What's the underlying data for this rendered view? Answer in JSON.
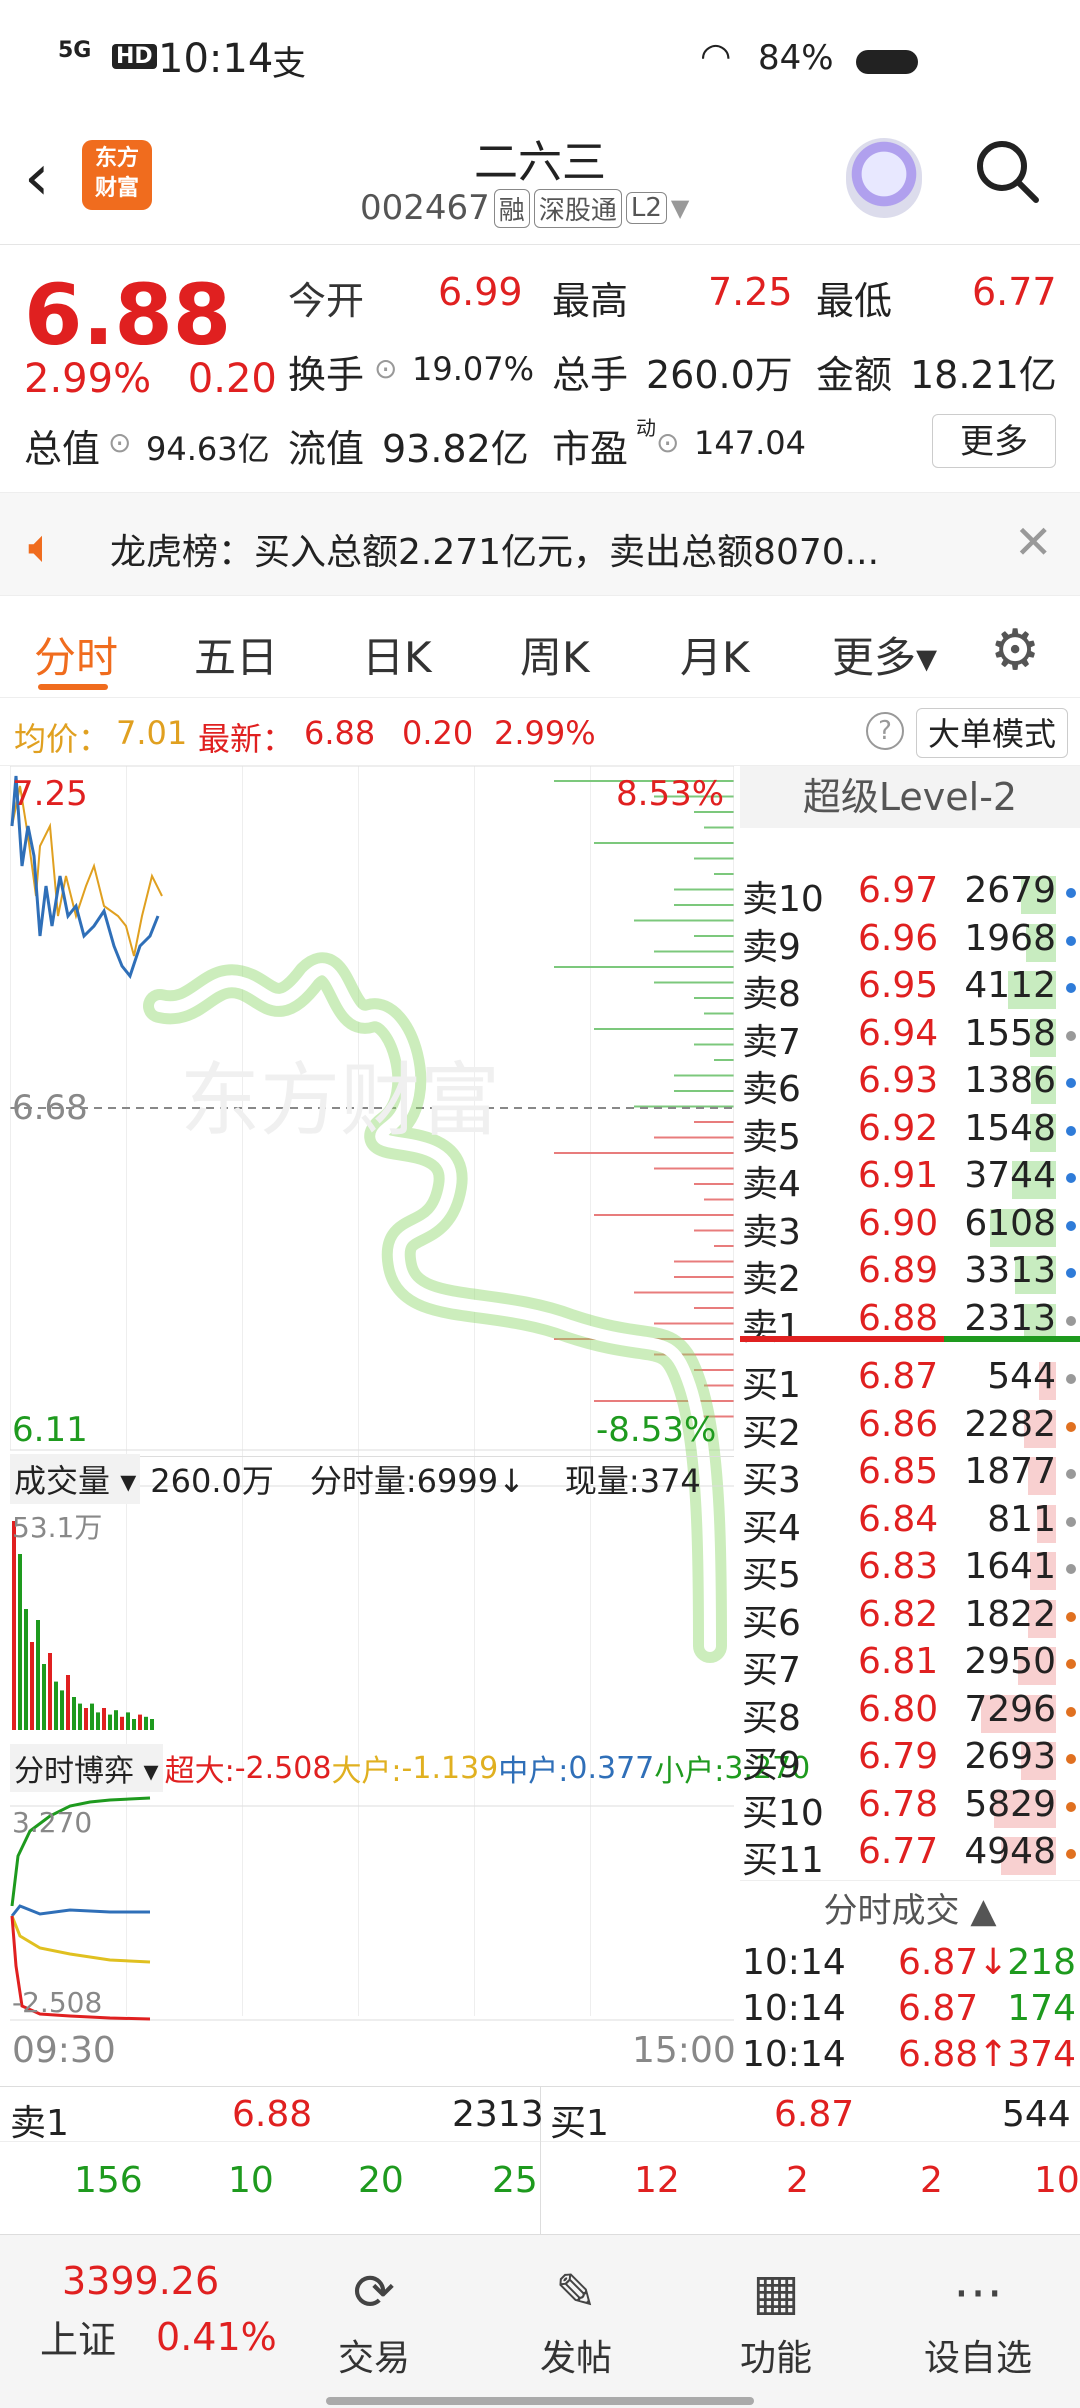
{
  "status_bar": {
    "signal": "5G",
    "hd": "HD",
    "time": "10:14",
    "carrier_icon": "支",
    "wifi": "wifi-icon",
    "battery": "84%"
  },
  "header": {
    "title": "二六三",
    "code": "002467",
    "tags": [
      "融",
      "深股通",
      "L2"
    ],
    "logo": "东方财富"
  },
  "quote": {
    "price": "6.88",
    "change_pct": "2.99%",
    "change": "0.20",
    "open_label": "今开",
    "open": "6.99",
    "high_label": "最高",
    "high": "7.25",
    "low_label": "最低",
    "low": "6.77",
    "turnover_label": "换手",
    "turnover": "19.07%",
    "volume_label": "总手",
    "volume": "260.0万",
    "amount_label": "金额",
    "amount": "18.21亿",
    "mktcap_label": "总值",
    "mktcap": "94.63亿",
    "float_label": "流值",
    "float": "93.82亿",
    "pe_label": "市盈",
    "pe_sup": "动",
    "pe": "147.04",
    "more": "更多"
  },
  "notice": {
    "text": "龙虎榜：买入总额2.271亿元，卖出总额8070..."
  },
  "tabs": [
    "分时",
    "五日",
    "日K",
    "周K",
    "月K",
    "更多▾"
  ],
  "avg_line": {
    "avg_label": "均价：",
    "avg": "7.01",
    "latest_label": "最新：",
    "latest": "6.88",
    "chg": "0.20",
    "pct": "2.99%",
    "big_mode": "大单模式"
  },
  "chart": {
    "y_top": "7.25",
    "y_mid": "6.68",
    "y_bot": "6.11",
    "pct_top": "8.53%",
    "pct_bot": "-8.53%",
    "vol_label": "成交量",
    "vol_total": "260.0万",
    "vol_min_label": "分时量:6999↓",
    "vol_now_label": "现量:374",
    "vol_max": "53.1万",
    "game_label": "分时博弈",
    "super_label": "超大:",
    "super": "-2.508",
    "large_label": "大户:",
    "large": "-1.139",
    "mid_label": "中户:",
    "mid": "0.377",
    "small_label": "小户:",
    "small": "3.270",
    "game_top": "3.270",
    "game_bot": "-2.508",
    "time_start": "09:30",
    "time_end": "15:00",
    "watermark": "东方财富"
  },
  "book": {
    "header": "超级Level-2",
    "asks": [
      {
        "name": "卖10",
        "price": "6.97",
        "vol": "2679",
        "bar": 0.25,
        "dot": "#2f7bd8"
      },
      {
        "name": "卖9",
        "price": "6.96",
        "vol": "1968",
        "bar": 0.2,
        "dot": "#2f7bd8"
      },
      {
        "name": "卖8",
        "price": "6.95",
        "vol": "4112",
        "bar": 0.4,
        "dot": "#2f7bd8"
      },
      {
        "name": "卖7",
        "price": "6.94",
        "vol": "1558",
        "bar": 0.15,
        "dot": "#999999"
      },
      {
        "name": "卖6",
        "price": "6.93",
        "vol": "1386",
        "bar": 0.14,
        "dot": "#2f7bd8"
      },
      {
        "name": "卖5",
        "price": "6.92",
        "vol": "1548",
        "bar": 0.15,
        "dot": "#2f7bd8"
      },
      {
        "name": "卖4",
        "price": "6.91",
        "vol": "3744",
        "bar": 0.36,
        "dot": "#2f7bd8"
      },
      {
        "name": "卖3",
        "price": "6.90",
        "vol": "6108",
        "bar": 0.6,
        "dot": "#2f7bd8"
      },
      {
        "name": "卖2",
        "price": "6.89",
        "vol": "3313",
        "bar": 0.32,
        "dot": "#2f7bd8"
      },
      {
        "name": "卖1",
        "price": "6.88",
        "vol": "2313",
        "bar": 0.22,
        "dot": "#999999"
      }
    ],
    "bids": [
      {
        "name": "买1",
        "price": "6.87",
        "vol": "544",
        "bar": 0.06,
        "dot": "#999999"
      },
      {
        "name": "买2",
        "price": "6.86",
        "vol": "2282",
        "bar": 0.22,
        "dot": "#e07020"
      },
      {
        "name": "买3",
        "price": "6.85",
        "vol": "1877",
        "bar": 0.18,
        "dot": "#999999"
      },
      {
        "name": "买4",
        "price": "6.84",
        "vol": "811",
        "bar": 0.08,
        "dot": "#999999"
      },
      {
        "name": "买5",
        "price": "6.83",
        "vol": "1641",
        "bar": 0.16,
        "dot": "#999999"
      },
      {
        "name": "买6",
        "price": "6.82",
        "vol": "1822",
        "bar": 0.18,
        "dot": "#e07020"
      },
      {
        "name": "买7",
        "price": "6.81",
        "vol": "2950",
        "bar": 0.29,
        "dot": "#e07020"
      },
      {
        "name": "买8",
        "price": "6.80",
        "vol": "7296",
        "bar": 0.7,
        "dot": "#e07020"
      },
      {
        "name": "买9",
        "price": "6.79",
        "vol": "2693",
        "bar": 0.26,
        "dot": "#e07020"
      },
      {
        "name": "买10",
        "price": "6.78",
        "vol": "5829",
        "bar": 0.56,
        "dot": "#e07020"
      },
      {
        "name": "买11",
        "price": "6.77",
        "vol": "4948",
        "bar": 0.48,
        "dot": "#e07020"
      }
    ],
    "ticks_header": "分时成交 ▲",
    "ticks": [
      {
        "time": "10:14",
        "price": "6.87↓",
        "vol": "218",
        "vcolor": "#1e9a1e"
      },
      {
        "time": "10:14",
        "price": "6.87",
        "vol": "174",
        "vcolor": "#1e9a1e"
      },
      {
        "time": "10:14",
        "price": "6.88↑",
        "vol": "374",
        "vcolor": "#e02020"
      }
    ]
  },
  "level1": {
    "ask_label": "卖1",
    "ask_price": "6.88",
    "ask_vol": "2313",
    "bid_label": "买1",
    "bid_price": "6.87",
    "bid_vol": "544",
    "ask_row": [
      "156",
      "10",
      "20",
      "25"
    ],
    "bid_row": [
      "12",
      "2",
      "2",
      "10"
    ]
  },
  "nav": {
    "index_value": "3399.26",
    "index_name": "上证",
    "index_pct": "0.41%",
    "items": [
      "交易",
      "发帖",
      "功能",
      "设自选"
    ]
  }
}
